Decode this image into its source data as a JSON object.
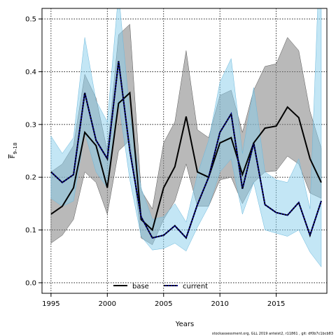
{
  "chart_data": {
    "type": "line",
    "xlabel": "Years",
    "ylabel": "F",
    "ylabel_sub": "9–18",
    "ylim": [
      -0.02,
      0.52
    ],
    "xlim": [
      1994.2,
      2019.5
    ],
    "x_ticks": [
      1995,
      2000,
      2005,
      2010,
      2015
    ],
    "y_ticks": [
      0.0,
      0.1,
      0.2,
      0.3,
      0.4,
      0.5
    ],
    "grid": true,
    "legend_position": "bottom-center",
    "footer": "stockassessment.org, GLL 2019 anteist2, r11861 , git: df0b7c1bcb83",
    "x": [
      1995,
      1996,
      1997,
      1998,
      1999,
      2000,
      2001,
      2002,
      2003,
      2004,
      2005,
      2006,
      2007,
      2008,
      2009,
      2010,
      2011,
      2012,
      2013,
      2014,
      2015,
      2016,
      2017,
      2018,
      2019
    ],
    "series": [
      {
        "name": "base",
        "color": "#000000",
        "band_color": "#808080",
        "values": [
          0.13,
          0.145,
          0.18,
          0.285,
          0.26,
          0.18,
          0.34,
          0.36,
          0.12,
          0.1,
          0.18,
          0.22,
          0.315,
          0.21,
          0.2,
          0.265,
          0.275,
          0.205,
          0.265,
          0.293,
          0.297,
          0.333,
          0.313,
          0.235,
          0.19
        ],
        "lower": [
          0.075,
          0.09,
          0.12,
          0.21,
          0.19,
          0.13,
          0.25,
          0.27,
          0.085,
          0.072,
          0.12,
          0.155,
          0.225,
          0.145,
          0.145,
          0.195,
          0.2,
          0.15,
          0.19,
          0.21,
          0.212,
          0.24,
          0.225,
          0.17,
          0.16
        ],
        "upper": [
          0.21,
          0.225,
          0.26,
          0.395,
          0.35,
          0.25,
          0.47,
          0.49,
          0.175,
          0.14,
          0.265,
          0.305,
          0.44,
          0.29,
          0.275,
          0.355,
          0.365,
          0.285,
          0.365,
          0.41,
          0.415,
          0.465,
          0.44,
          0.325,
          0.255
        ]
      },
      {
        "name": "current",
        "color": "#00008b",
        "band_color": "#87ceeb",
        "values": [
          0.21,
          0.19,
          0.205,
          0.36,
          0.27,
          0.235,
          0.42,
          0.25,
          0.125,
          0.085,
          0.09,
          0.108,
          0.085,
          0.148,
          0.2,
          0.285,
          0.32,
          0.178,
          0.265,
          0.148,
          0.133,
          0.128,
          0.152,
          0.09,
          0.155
        ],
        "lower": [
          0.16,
          0.145,
          0.155,
          0.285,
          0.21,
          0.18,
          0.345,
          0.195,
          0.088,
          0.062,
          0.065,
          0.075,
          0.06,
          0.105,
          0.145,
          0.21,
          0.235,
          0.13,
          0.19,
          0.1,
          0.094,
          0.088,
          0.1,
          0.058,
          0.03
        ],
        "upper": [
          0.278,
          0.245,
          0.275,
          0.465,
          0.345,
          0.305,
          0.55,
          0.32,
          0.18,
          0.12,
          0.125,
          0.15,
          0.115,
          0.205,
          0.27,
          0.38,
          0.425,
          0.245,
          0.37,
          0.21,
          0.195,
          0.19,
          0.235,
          0.14,
          0.7
        ]
      }
    ]
  }
}
